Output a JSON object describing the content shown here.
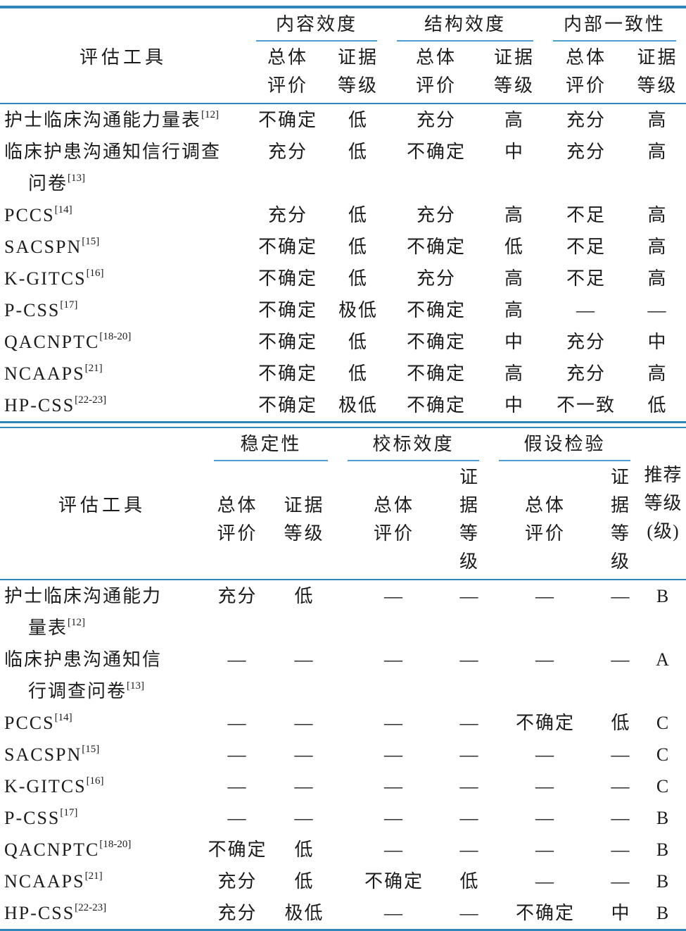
{
  "page": {
    "background": "#ffffff"
  },
  "colors": {
    "rule_thick": "#2f87ba",
    "rule_thin": "#4c9ed2",
    "text": "#1c1c1c"
  },
  "tables": [
    {
      "id": "validity-table-top",
      "tool_column_header": "评估工具",
      "groups": [
        "内容效度",
        "结构效度",
        "内部一致性"
      ],
      "sub_headers": [
        "总体\n评价",
        "证据\n等级"
      ],
      "rows": [
        {
          "tool_lines": [
            "护士临床沟通能力量表"
          ],
          "ref": "[12]",
          "values": [
            "不确定",
            "低",
            "充分",
            "高",
            "充分",
            "高"
          ]
        },
        {
          "tool_lines": [
            "临床护患沟通知信行调查",
            "问卷"
          ],
          "ref": "[13]",
          "values": [
            "充分",
            "低",
            "不确定",
            "中",
            "充分",
            "高"
          ]
        },
        {
          "tool_lines": [
            "PCCS"
          ],
          "ref": "[14]",
          "values": [
            "充分",
            "低",
            "充分",
            "高",
            "不足",
            "高"
          ]
        },
        {
          "tool_lines": [
            "SACSPN"
          ],
          "ref": "[15]",
          "values": [
            "不确定",
            "低",
            "不确定",
            "低",
            "不足",
            "高"
          ]
        },
        {
          "tool_lines": [
            "K-GITCS"
          ],
          "ref": "[16]",
          "values": [
            "不确定",
            "低",
            "充分",
            "高",
            "不足",
            "高"
          ]
        },
        {
          "tool_lines": [
            "P-CSS"
          ],
          "ref": "[17]",
          "values": [
            "不确定",
            "极低",
            "不确定",
            "高",
            "—",
            "—"
          ]
        },
        {
          "tool_lines": [
            "QACNPTC"
          ],
          "ref": "[18-20]",
          "values": [
            "不确定",
            "低",
            "不确定",
            "中",
            "充分",
            "中"
          ]
        },
        {
          "tool_lines": [
            "NCAAPS"
          ],
          "ref": "[21]",
          "values": [
            "不确定",
            "低",
            "不确定",
            "高",
            "充分",
            "高"
          ]
        },
        {
          "tool_lines": [
            "HP-CSS"
          ],
          "ref": "[22-23]",
          "values": [
            "不确定",
            "极低",
            "不确定",
            "中",
            "不一致",
            "低"
          ]
        }
      ]
    },
    {
      "id": "validity-table-bottom",
      "tool_column_header": "评估工具",
      "groups": [
        "稳定性",
        "校标效度",
        "假设检验"
      ],
      "sub_headers": [
        "总体\n评价",
        "证据\n等级"
      ],
      "recommendation_header": "推荐\n等级\n(级)",
      "rows": [
        {
          "tool_lines": [
            "护士临床沟通能力",
            "量表"
          ],
          "ref": "[12]",
          "values": [
            "充分",
            "低",
            "—",
            "—",
            "—",
            "—",
            "B"
          ]
        },
        {
          "tool_lines": [
            "临床护患沟通知信",
            "行调查问卷"
          ],
          "ref": "[13]",
          "values": [
            "—",
            "—",
            "—",
            "—",
            "—",
            "—",
            "A"
          ]
        },
        {
          "tool_lines": [
            "PCCS"
          ],
          "ref": "[14]",
          "values": [
            "—",
            "—",
            "—",
            "—",
            "不确定",
            "低",
            "C"
          ]
        },
        {
          "tool_lines": [
            "SACSPN"
          ],
          "ref": "[15]",
          "values": [
            "—",
            "—",
            "—",
            "—",
            "—",
            "—",
            "C"
          ]
        },
        {
          "tool_lines": [
            "K-GITCS"
          ],
          "ref": "[16]",
          "values": [
            "—",
            "—",
            "—",
            "—",
            "—",
            "—",
            "C"
          ]
        },
        {
          "tool_lines": [
            "P-CSS"
          ],
          "ref": "[17]",
          "values": [
            "—",
            "—",
            "—",
            "—",
            "—",
            "—",
            "B"
          ]
        },
        {
          "tool_lines": [
            "QACNPTC"
          ],
          "ref": "[18-20]",
          "values": [
            "不确定",
            "低",
            "—",
            "—",
            "—",
            "—",
            "B"
          ]
        },
        {
          "tool_lines": [
            "NCAAPS"
          ],
          "ref": "[21]",
          "values": [
            "充分",
            "低",
            "不确定",
            "低",
            "—",
            "—",
            "B"
          ]
        },
        {
          "tool_lines": [
            "HP-CSS"
          ],
          "ref": "[22-23]",
          "values": [
            "充分",
            "极低",
            "—",
            "—",
            "不确定",
            "中",
            "B"
          ]
        }
      ]
    }
  ]
}
